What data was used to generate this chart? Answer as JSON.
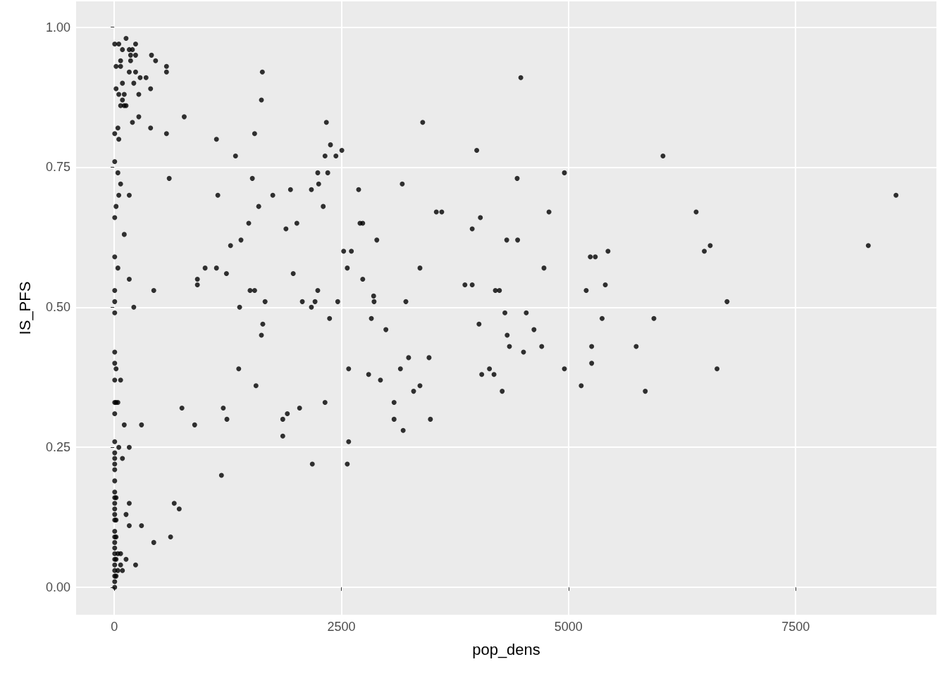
{
  "chart_data": {
    "type": "scatter",
    "xlabel": "pop_dens",
    "ylabel": "IS_PFS",
    "x": [
      5,
      5,
      5,
      5,
      5,
      5,
      5,
      5,
      5,
      5,
      5,
      5,
      5,
      5,
      5,
      5,
      5,
      5,
      5,
      5,
      5,
      5,
      5,
      5,
      5,
      5,
      5,
      5,
      5,
      5,
      5,
      5,
      5,
      5,
      5,
      5,
      20,
      20,
      20,
      20,
      20,
      20,
      20,
      20,
      20,
      20,
      40,
      40,
      40,
      40,
      40,
      40,
      50,
      50,
      50,
      50,
      50,
      70,
      70,
      70,
      70,
      70,
      70,
      70,
      90,
      90,
      90,
      90,
      90,
      110,
      110,
      110,
      110,
      130,
      130,
      130,
      130,
      165,
      165,
      165,
      165,
      165,
      165,
      165,
      180,
      180,
      200,
      200,
      215,
      215,
      235,
      235,
      235,
      235,
      270,
      270,
      285,
      300,
      300,
      350,
      400,
      400,
      410,
      435,
      435,
      455,
      575,
      575,
      575,
      605,
      620,
      660,
      715,
      745,
      770,
      885,
      915,
      915,
      1000,
      1125,
      1125,
      1140,
      1180,
      1200,
      1235,
      1240,
      1280,
      1335,
      1370,
      1380,
      1395,
      1480,
      1495,
      1520,
      1545,
      1545,
      1560,
      1590,
      1620,
      1620,
      1630,
      1635,
      1660,
      1745,
      1855,
      1855,
      1890,
      1905,
      1940,
      1970,
      2010,
      2040,
      2070,
      2170,
      2170,
      2180,
      2210,
      2240,
      2240,
      2250,
      2300,
      2320,
      2320,
      2335,
      2350,
      2370,
      2380,
      2440,
      2460,
      2505,
      2525,
      2565,
      2565,
      2580,
      2580,
      2610,
      2690,
      2705,
      2735,
      2735,
      2800,
      2830,
      2855,
      2860,
      2890,
      2930,
      2990,
      3080,
      3080,
      3150,
      3170,
      3180,
      3210,
      3240,
      3295,
      3365,
      3365,
      3395,
      3465,
      3480,
      3545,
      3605,
      3860,
      3940,
      3940,
      3990,
      4015,
      4030,
      4045,
      4130,
      4180,
      4195,
      4240,
      4270,
      4300,
      4320,
      4325,
      4350,
      4435,
      4440,
      4475,
      4505,
      4535,
      4620,
      4705,
      4730,
      4785,
      4955,
      4955,
      5140,
      5195,
      5240,
      5255,
      5255,
      5295,
      5370,
      5405,
      5435,
      5745,
      5845,
      5940,
      6040,
      6405,
      6495,
      6560,
      6635,
      6745,
      8300,
      8605
    ],
    "values": [
      0.97,
      0.81,
      0.76,
      0.66,
      0.59,
      0.53,
      0.51,
      0.49,
      0.42,
      0.4,
      0.37,
      0.33,
      0.31,
      0.26,
      0.24,
      0.23,
      0.22,
      0.21,
      0.19,
      0.17,
      0.16,
      0.15,
      0.14,
      0.13,
      0.12,
      0.1,
      0.09,
      0.08,
      0.07,
      0.06,
      0.05,
      0.04,
      0.03,
      0.02,
      0.01,
      0.0,
      0.93,
      0.89,
      0.68,
      0.39,
      0.33,
      0.16,
      0.12,
      0.09,
      0.05,
      0.02,
      0.82,
      0.74,
      0.57,
      0.33,
      0.06,
      0.03,
      0.97,
      0.88,
      0.8,
      0.7,
      0.25,
      0.94,
      0.93,
      0.86,
      0.72,
      0.37,
      0.06,
      0.04,
      0.96,
      0.9,
      0.87,
      0.23,
      0.03,
      0.88,
      0.86,
      0.63,
      0.29,
      0.98,
      0.86,
      0.05,
      0.13,
      0.96,
      0.92,
      0.7,
      0.55,
      0.11,
      0.15,
      0.25,
      0.94,
      0.95,
      0.83,
      0.96,
      0.9,
      0.5,
      0.92,
      0.97,
      0.95,
      0.04,
      0.84,
      0.88,
      0.91,
      0.29,
      0.11,
      0.91,
      0.89,
      0.82,
      0.95,
      0.53,
      0.08,
      0.94,
      0.93,
      0.92,
      0.81,
      0.73,
      0.09,
      0.15,
      0.14,
      0.32,
      0.84,
      0.29,
      0.55,
      0.54,
      0.57,
      0.8,
      0.57,
      0.7,
      0.2,
      0.32,
      0.56,
      0.3,
      0.61,
      0.77,
      0.39,
      0.5,
      0.62,
      0.65,
      0.53,
      0.73,
      0.53,
      0.81,
      0.36,
      0.68,
      0.87,
      0.45,
      0.92,
      0.47,
      0.51,
      0.7,
      0.3,
      0.27,
      0.64,
      0.31,
      0.71,
      0.56,
      0.65,
      0.32,
      0.51,
      0.71,
      0.5,
      0.22,
      0.51,
      0.74,
      0.53,
      0.72,
      0.68,
      0.77,
      0.33,
      0.83,
      0.74,
      0.48,
      0.79,
      0.77,
      0.51,
      0.78,
      0.6,
      0.57,
      0.22,
      0.39,
      0.26,
      0.6,
      0.71,
      0.65,
      0.65,
      0.55,
      0.38,
      0.48,
      0.52,
      0.51,
      0.62,
      0.37,
      0.46,
      0.33,
      0.3,
      0.39,
      0.72,
      0.28,
      0.51,
      0.41,
      0.35,
      0.57,
      0.36,
      0.83,
      0.41,
      0.3,
      0.67,
      0.67,
      0.54,
      0.54,
      0.64,
      0.78,
      0.47,
      0.66,
      0.38,
      0.39,
      0.38,
      0.53,
      0.53,
      0.35,
      0.49,
      0.62,
      0.45,
      0.43,
      0.73,
      0.62,
      0.91,
      0.42,
      0.49,
      0.46,
      0.43,
      0.57,
      0.67,
      0.74,
      0.39,
      0.36,
      0.53,
      0.59,
      0.43,
      0.4,
      0.59,
      0.48,
      0.54,
      0.6,
      0.43,
      0.35,
      0.48,
      0.77,
      0.67,
      0.6,
      0.61,
      0.39,
      0.51,
      0.61,
      0.7
    ],
    "color": "#000000",
    "marker": "circle",
    "xlim": [
      -420,
      9050
    ],
    "ylim": [
      -0.049,
      1.046
    ],
    "xticks": [
      0,
      2500,
      5000,
      7500
    ],
    "yticks": [
      {
        "value": 0,
        "label": "0.00"
      },
      {
        "value": 0.25,
        "label": "0.25"
      },
      {
        "value": 0.5,
        "label": "0.50"
      },
      {
        "value": 0.75,
        "label": "0.75"
      },
      {
        "value": 1,
        "label": "1.00"
      }
    ],
    "grid": true
  }
}
